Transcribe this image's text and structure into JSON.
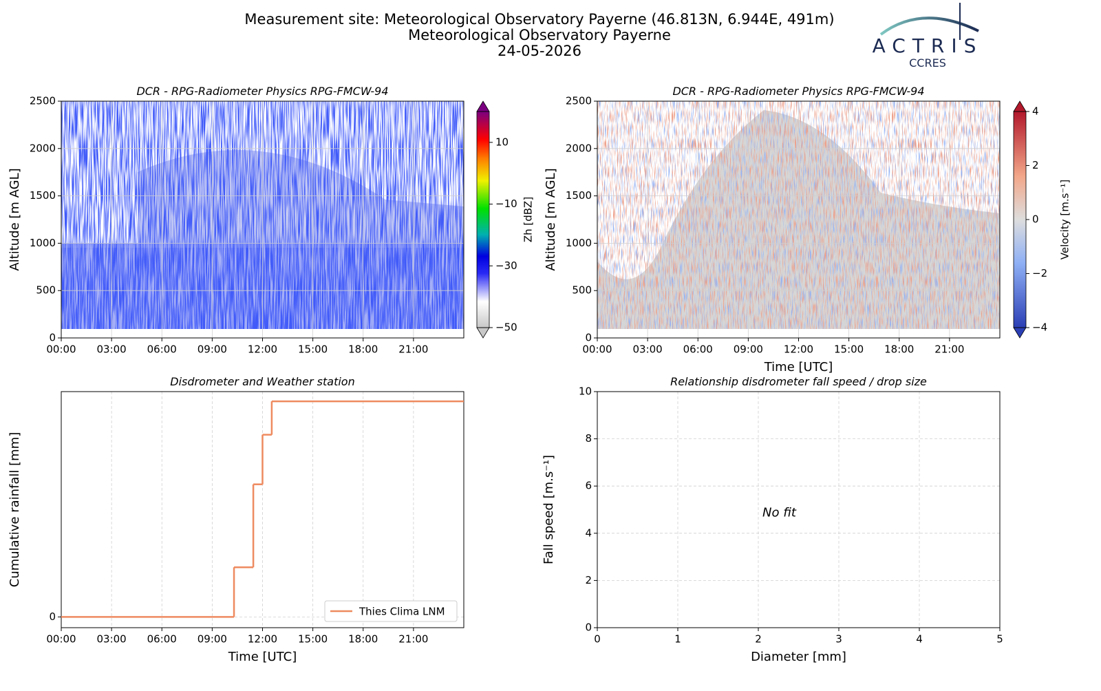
{
  "header": {
    "title_lines": [
      "Measurement site: Meteorological Observatory Payerne (46.813N, 6.944E, 491m)",
      "Meteorological Observatory Payerne",
      "24-05-2026"
    ]
  },
  "logo": {
    "name": "ACTRIS",
    "sub": "CCRES"
  },
  "chart_data": [
    {
      "type": "heatmap",
      "title": "DCR - RPG-Radiometer Physics RPG-FMCW-94",
      "y_label": "Altitude [m AGL]",
      "xlim": [
        0,
        24
      ],
      "xticks": [
        {
          "value": 0,
          "label": "00:00"
        },
        {
          "value": 3,
          "label": "03:00"
        },
        {
          "value": 6,
          "label": "06:00"
        },
        {
          "value": 9,
          "label": "09:00"
        },
        {
          "value": 12,
          "label": "12:00"
        },
        {
          "value": 15,
          "label": "15:00"
        },
        {
          "value": 18,
          "label": "18:00"
        },
        {
          "value": 21,
          "label": "21:00"
        }
      ],
      "ylim": [
        0,
        2500
      ],
      "yticks": [
        0,
        500,
        1000,
        1500,
        2000,
        2500
      ],
      "grid": true,
      "colorbar": {
        "label": "Zh [dBZ]",
        "lim": [
          -50,
          20
        ],
        "ticks": [
          {
            "value": -50,
            "label": "−50"
          },
          {
            "value": -30,
            "label": "−30"
          },
          {
            "value": -10,
            "label": "−10"
          },
          10
        ]
      }
    },
    {
      "type": "heatmap",
      "title": "DCR - RPG-Radiometer Physics RPG-FMCW-94",
      "y_label": "Altitude [m AGL]",
      "x_label": "Time [UTC]",
      "xlim": [
        0,
        24
      ],
      "xticks": [
        {
          "value": 0,
          "label": "00:00"
        },
        {
          "value": 3,
          "label": "03:00"
        },
        {
          "value": 6,
          "label": "06:00"
        },
        {
          "value": 9,
          "label": "09:00"
        },
        {
          "value": 12,
          "label": "12:00"
        },
        {
          "value": 15,
          "label": "15:00"
        },
        {
          "value": 18,
          "label": "18:00"
        },
        {
          "value": 21,
          "label": "21:00"
        }
      ],
      "ylim": [
        0,
        2500
      ],
      "yticks": [
        0,
        500,
        1000,
        1500,
        2000,
        2500
      ],
      "grid": true,
      "colorbar": {
        "label": "Velocity [m.s⁻¹]",
        "lim": [
          -4,
          4
        ],
        "ticks": [
          {
            "value": -4,
            "label": "−4"
          },
          {
            "value": -2,
            "label": "−2"
          },
          0,
          2,
          4
        ]
      }
    },
    {
      "type": "line",
      "title": "Disdrometer and Weather station",
      "y_label": "Cumulative rainfall [mm]",
      "x_label": "Time [UTC]",
      "x": [
        0,
        10.3,
        11.45,
        12.0,
        12.55,
        24
      ],
      "series": [
        {
          "name": "Thies Clima LNM",
          "color": "#ee8a5f",
          "values": [
            0,
            0.46,
            1.23,
            1.69,
            2.0,
            2.0
          ]
        }
      ],
      "step": "post",
      "xlim": [
        0,
        24
      ],
      "xticks": [
        {
          "value": 0,
          "label": "00:00"
        },
        {
          "value": 3,
          "label": "03:00"
        },
        {
          "value": 6,
          "label": "06:00"
        },
        {
          "value": 9,
          "label": "09:00"
        },
        {
          "value": 12,
          "label": "12:00"
        },
        {
          "value": 15,
          "label": "15:00"
        },
        {
          "value": 18,
          "label": "18:00"
        },
        {
          "value": 21,
          "label": "21:00"
        }
      ],
      "ylim": [
        -0.1,
        2.09
      ],
      "yticks": [
        0
      ],
      "grid": true,
      "legend": "lower right"
    },
    {
      "type": "scatter",
      "title": "Relationship disdrometer fall speed / drop size",
      "y_label": "Fall speed [m.s⁻¹]",
      "x_label": "Diameter [mm]",
      "annotation": "No fit",
      "xlim": [
        0,
        5
      ],
      "xticks": [
        0,
        1,
        2,
        3,
        4,
        5
      ],
      "ylim": [
        0,
        10
      ],
      "yticks": [
        0,
        2,
        4,
        6,
        8,
        10
      ],
      "grid": true
    }
  ]
}
